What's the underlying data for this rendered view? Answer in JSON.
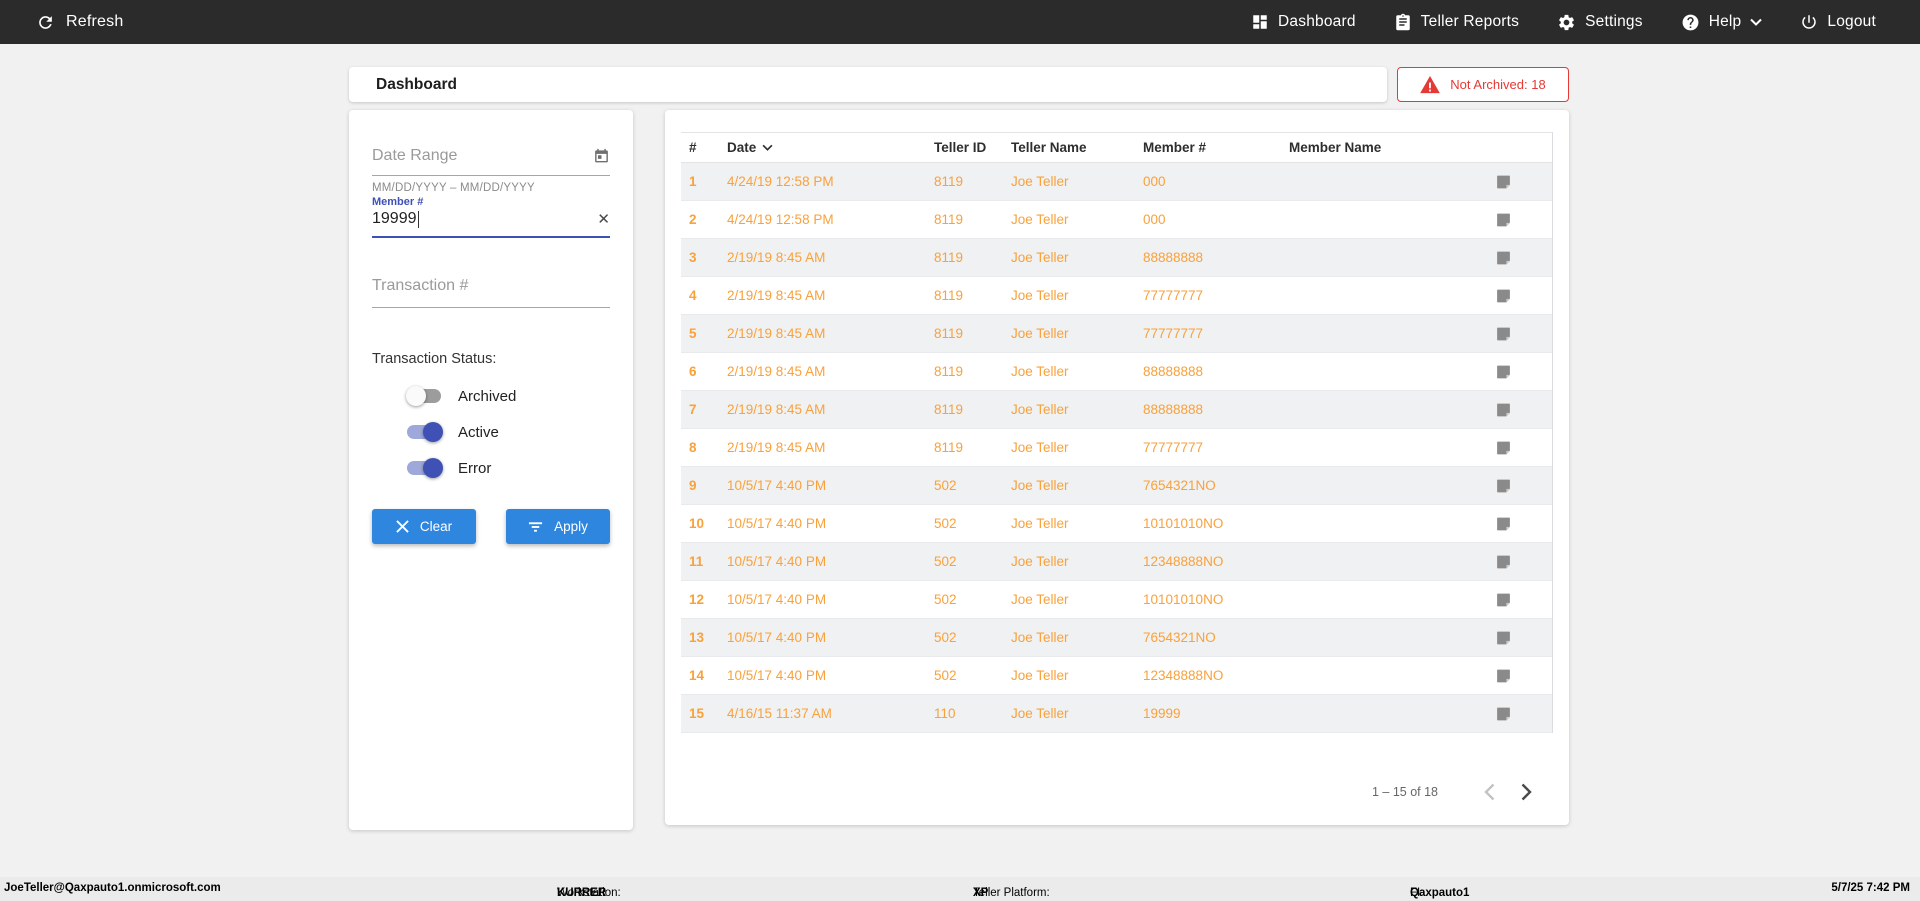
{
  "topnav": {
    "refresh_label": "Refresh",
    "items": [
      {
        "label": "Dashboard"
      },
      {
        "label": "Teller Reports"
      },
      {
        "label": "Settings"
      },
      {
        "label": "Help"
      },
      {
        "label": "Logout"
      }
    ]
  },
  "header": {
    "title": "Dashboard",
    "alert_badge": "Not Archived: 18"
  },
  "filters": {
    "date_range_placeholder": "Date Range",
    "date_range_helper": "MM/DD/YYYY – MM/DD/YYYY",
    "member_label": "Member #",
    "member_value": "19999",
    "transaction_placeholder": "Transaction #",
    "status_label": "Transaction Status:",
    "toggles": [
      {
        "label": "Archived",
        "on": false
      },
      {
        "label": "Active",
        "on": true
      },
      {
        "label": "Error",
        "on": true
      }
    ],
    "clear_label": "Clear",
    "apply_label": "Apply"
  },
  "table": {
    "columns": [
      "#",
      "Date",
      "Teller ID",
      "Teller Name",
      "Member #",
      "Member Name"
    ],
    "sorted_by": "Date",
    "sort_direction": "desc",
    "rows": [
      {
        "num": "1",
        "date": "4/24/19 12:58 PM",
        "teller_id": "8119",
        "teller_name": "Joe Teller",
        "member_num": "000",
        "member_name": ""
      },
      {
        "num": "2",
        "date": "4/24/19 12:58 PM",
        "teller_id": "8119",
        "teller_name": "Joe Teller",
        "member_num": "000",
        "member_name": ""
      },
      {
        "num": "3",
        "date": "2/19/19 8:45 AM",
        "teller_id": "8119",
        "teller_name": "Joe Teller",
        "member_num": "88888888",
        "member_name": ""
      },
      {
        "num": "4",
        "date": "2/19/19 8:45 AM",
        "teller_id": "8119",
        "teller_name": "Joe Teller",
        "member_num": "77777777",
        "member_name": ""
      },
      {
        "num": "5",
        "date": "2/19/19 8:45 AM",
        "teller_id": "8119",
        "teller_name": "Joe Teller",
        "member_num": "77777777",
        "member_name": ""
      },
      {
        "num": "6",
        "date": "2/19/19 8:45 AM",
        "teller_id": "8119",
        "teller_name": "Joe Teller",
        "member_num": "88888888",
        "member_name": ""
      },
      {
        "num": "7",
        "date": "2/19/19 8:45 AM",
        "teller_id": "8119",
        "teller_name": "Joe Teller",
        "member_num": "88888888",
        "member_name": ""
      },
      {
        "num": "8",
        "date": "2/19/19 8:45 AM",
        "teller_id": "8119",
        "teller_name": "Joe Teller",
        "member_num": "77777777",
        "member_name": ""
      },
      {
        "num": "9",
        "date": "10/5/17 4:40 PM",
        "teller_id": "502",
        "teller_name": "Joe Teller",
        "member_num": "7654321NO",
        "member_name": ""
      },
      {
        "num": "10",
        "date": "10/5/17 4:40 PM",
        "teller_id": "502",
        "teller_name": "Joe Teller",
        "member_num": "10101010NO",
        "member_name": ""
      },
      {
        "num": "11",
        "date": "10/5/17 4:40 PM",
        "teller_id": "502",
        "teller_name": "Joe Teller",
        "member_num": "12348888NO",
        "member_name": ""
      },
      {
        "num": "12",
        "date": "10/5/17 4:40 PM",
        "teller_id": "502",
        "teller_name": "Joe Teller",
        "member_num": "10101010NO",
        "member_name": ""
      },
      {
        "num": "13",
        "date": "10/5/17 4:40 PM",
        "teller_id": "502",
        "teller_name": "Joe Teller",
        "member_num": "7654321NO",
        "member_name": ""
      },
      {
        "num": "14",
        "date": "10/5/17 4:40 PM",
        "teller_id": "502",
        "teller_name": "Joe Teller",
        "member_num": "12348888NO",
        "member_name": ""
      },
      {
        "num": "15",
        "date": "4/16/15 11:37 AM",
        "teller_id": "110",
        "teller_name": "Joe Teller",
        "member_num": "19999",
        "member_name": ""
      }
    ],
    "pagination": {
      "range_label": "1 – 15 of 18"
    }
  },
  "statusbar": {
    "user": "JoeTeller@Qaxpauto1.onmicrosoft.com",
    "workstation_label": "Workstation:",
    "workstation_value": "KURRER",
    "platform_label": "Teller Platform:",
    "platform_value": "XP",
    "fi_label": "FI:",
    "fi_value": "Qaxpauto1",
    "timestamp": "5/7/25 7:42 PM"
  },
  "colors": {
    "accent_blue": "#2e86de",
    "indigo": "#3f51b5",
    "row_text_orange": "#f9a13b",
    "alert_red": "#e53935",
    "topnav_bg": "#2b2b2b"
  }
}
